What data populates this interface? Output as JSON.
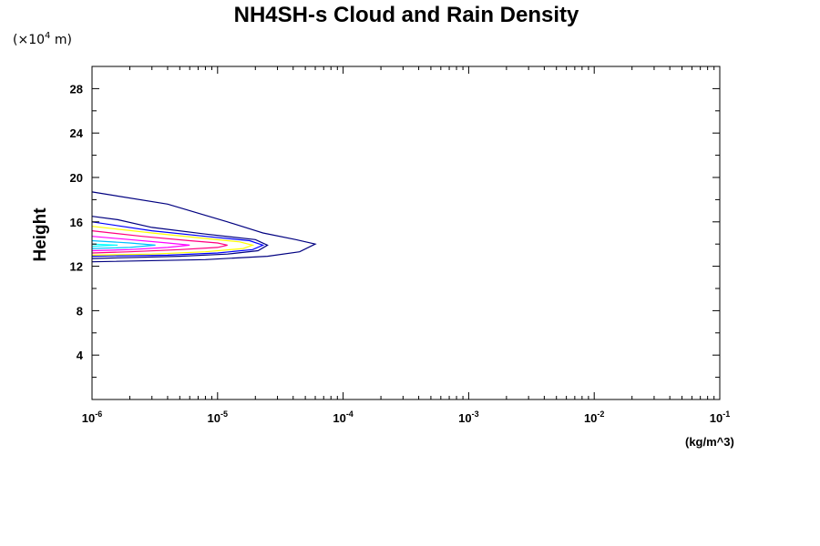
{
  "chart_data": {
    "type": "contour",
    "title": "NH4SH-s Cloud and Rain Density",
    "ylabel": "Height",
    "y_scale_label": "(×10",
    "y_scale_exp": "4",
    "y_scale_unit": " m)",
    "xunit": "(kg/m^3)",
    "xscale": "log",
    "xlim": [
      1e-06,
      0.1
    ],
    "ylim": [
      0,
      30
    ],
    "x_ticks": [
      {
        "value": 1e-06,
        "base": "10",
        "exp": "-6"
      },
      {
        "value": 1e-05,
        "base": "10",
        "exp": "-5"
      },
      {
        "value": 0.0001,
        "base": "10",
        "exp": "-4"
      },
      {
        "value": 0.001,
        "base": "10",
        "exp": "-3"
      },
      {
        "value": 0.01,
        "base": "10",
        "exp": "-2"
      },
      {
        "value": 0.1,
        "base": "10",
        "exp": "-1"
      }
    ],
    "y_ticks": [
      4,
      8,
      12,
      16,
      20,
      24,
      28
    ],
    "contours": [
      {
        "color": "#000080",
        "points": [
          [
            1e-06,
            18.7
          ],
          [
            4e-06,
            17.6
          ],
          [
            1.2e-05,
            16.0
          ],
          [
            2.3e-05,
            15.0
          ],
          [
            4.2e-05,
            14.4
          ],
          [
            6e-05,
            14.0
          ],
          [
            4.5e-05,
            13.3
          ],
          [
            2.5e-05,
            12.9
          ],
          [
            8e-06,
            12.6
          ],
          [
            1e-06,
            12.4
          ]
        ]
      },
      {
        "color": "#000080",
        "points": [
          [
            1e-06,
            16.5
          ],
          [
            1.6e-06,
            16.2
          ],
          [
            3e-06,
            15.5
          ],
          [
            8e-06,
            14.9
          ],
          [
            2e-05,
            14.4
          ],
          [
            2.5e-05,
            13.9
          ],
          [
            2.1e-05,
            13.4
          ],
          [
            1.2e-05,
            13.1
          ],
          [
            5e-06,
            12.9
          ],
          [
            1e-06,
            12.7
          ]
        ]
      },
      {
        "color": "#0000ff",
        "points": [
          [
            1e-06,
            16.0
          ],
          [
            3e-06,
            15.2
          ],
          [
            8e-06,
            14.7
          ],
          [
            1.8e-05,
            14.3
          ],
          [
            2.3e-05,
            13.9
          ],
          [
            1.9e-05,
            13.5
          ],
          [
            1e-05,
            13.2
          ],
          [
            4e-06,
            13.0
          ],
          [
            1e-06,
            12.9
          ]
        ]
      },
      {
        "color": "#ffff00",
        "points": [
          [
            1e-06,
            15.6
          ],
          [
            3e-06,
            15.0
          ],
          [
            8e-06,
            14.5
          ],
          [
            1.5e-05,
            14.2
          ],
          [
            1.9e-05,
            13.9
          ],
          [
            1.6e-05,
            13.6
          ],
          [
            8e-06,
            13.3
          ],
          [
            3e-06,
            13.1
          ],
          [
            1e-06,
            13.0
          ]
        ]
      },
      {
        "color": "#ff0080",
        "points": [
          [
            1e-06,
            15.2
          ],
          [
            2.5e-06,
            14.7
          ],
          [
            6e-06,
            14.3
          ],
          [
            1e-05,
            14.1
          ],
          [
            1.2e-05,
            13.9
          ],
          [
            1e-05,
            13.7
          ],
          [
            5e-06,
            13.5
          ],
          [
            2e-06,
            13.3
          ],
          [
            1e-06,
            13.2
          ]
        ]
      },
      {
        "color": "#ff00ff",
        "points": [
          [
            1e-06,
            14.7
          ],
          [
            2e-06,
            14.4
          ],
          [
            4e-06,
            14.1
          ],
          [
            6e-06,
            13.9
          ],
          [
            4e-06,
            13.7
          ],
          [
            2e-06,
            13.5
          ],
          [
            1e-06,
            13.4
          ]
        ]
      },
      {
        "color": "#00c0ff",
        "points": [
          [
            1e-06,
            14.3
          ],
          [
            2e-06,
            14.1
          ],
          [
            3.2e-06,
            13.9
          ],
          [
            2e-06,
            13.7
          ],
          [
            1e-06,
            13.6
          ]
        ]
      },
      {
        "color": "#00ffff",
        "points": [
          [
            1e-06,
            14.0
          ],
          [
            1.6e-06,
            13.9
          ],
          [
            1e-06,
            13.8
          ]
        ]
      }
    ]
  }
}
